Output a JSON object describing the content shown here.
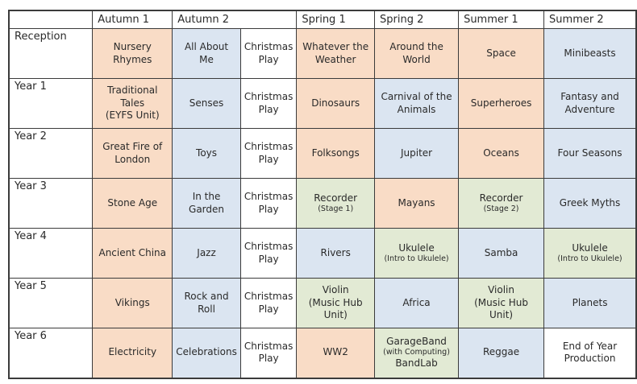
{
  "colors": {
    "peach": "#f9dcc6",
    "blue": "#dbe5f1",
    "green": "#e2ead4",
    "white": "#ffffff",
    "border": "#3b3b3b",
    "text": "#2a2a2a"
  },
  "table": {
    "corner": "",
    "header": [
      {
        "label": "Autumn 1",
        "colspan": 1
      },
      {
        "label": "Autumn 2",
        "colspan": 2
      },
      {
        "label": "Spring 1",
        "colspan": 1
      },
      {
        "label": "Spring 2",
        "colspan": 1
      },
      {
        "label": "Summer 1",
        "colspan": 1
      },
      {
        "label": "Summer 2",
        "colspan": 1
      }
    ],
    "rows": [
      {
        "label": "Reception",
        "cells": [
          {
            "color": "peach",
            "lines": [
              {
                "text": "Nursery Rhymes"
              }
            ]
          },
          {
            "color": "blue",
            "lines": [
              {
                "text": "All About Me"
              }
            ]
          },
          {
            "color": "white",
            "lines": [
              {
                "text": "Christmas Play"
              }
            ]
          },
          {
            "color": "peach",
            "lines": [
              {
                "text": "Whatever the Weather"
              }
            ]
          },
          {
            "color": "peach",
            "lines": [
              {
                "text": "Around the World"
              }
            ]
          },
          {
            "color": "peach",
            "lines": [
              {
                "text": "Space"
              }
            ]
          },
          {
            "color": "blue",
            "lines": [
              {
                "text": "Minibeasts"
              }
            ]
          }
        ]
      },
      {
        "label": "Year 1",
        "cells": [
          {
            "color": "peach",
            "lines": [
              {
                "text": "Traditional Tales"
              },
              {
                "text": "(EYFS Unit)"
              }
            ]
          },
          {
            "color": "blue",
            "lines": [
              {
                "text": "Senses"
              }
            ]
          },
          {
            "color": "white",
            "lines": [
              {
                "text": "Christmas Play"
              }
            ]
          },
          {
            "color": "peach",
            "lines": [
              {
                "text": "Dinosaurs"
              }
            ]
          },
          {
            "color": "blue",
            "lines": [
              {
                "text": "Carnival of the Animals"
              }
            ]
          },
          {
            "color": "peach",
            "lines": [
              {
                "text": "Superheroes"
              }
            ]
          },
          {
            "color": "blue",
            "lines": [
              {
                "text": "Fantasy and Adventure"
              }
            ]
          }
        ]
      },
      {
        "label": "Year 2",
        "cells": [
          {
            "color": "peach",
            "lines": [
              {
                "text": "Great Fire of London"
              }
            ]
          },
          {
            "color": "blue",
            "lines": [
              {
                "text": "Toys"
              }
            ]
          },
          {
            "color": "white",
            "lines": [
              {
                "text": "Christmas Play"
              }
            ]
          },
          {
            "color": "peach",
            "lines": [
              {
                "text": "Folksongs"
              }
            ]
          },
          {
            "color": "blue",
            "lines": [
              {
                "text": "Jupiter"
              }
            ]
          },
          {
            "color": "peach",
            "lines": [
              {
                "text": "Oceans"
              }
            ]
          },
          {
            "color": "blue",
            "lines": [
              {
                "text": "Four Seasons"
              }
            ]
          }
        ]
      },
      {
        "label": "Year 3",
        "cells": [
          {
            "color": "peach",
            "lines": [
              {
                "text": "Stone Age"
              }
            ]
          },
          {
            "color": "blue",
            "lines": [
              {
                "text": "In the Garden"
              }
            ]
          },
          {
            "color": "white",
            "lines": [
              {
                "text": "Christmas Play"
              }
            ]
          },
          {
            "color": "green",
            "lines": [
              {
                "text": "Recorder"
              },
              {
                "text": "(Stage 1)",
                "small": true
              }
            ]
          },
          {
            "color": "peach",
            "lines": [
              {
                "text": "Mayans"
              }
            ]
          },
          {
            "color": "green",
            "lines": [
              {
                "text": "Recorder"
              },
              {
                "text": "(Stage 2)",
                "small": true
              }
            ]
          },
          {
            "color": "blue",
            "lines": [
              {
                "text": "Greek Myths"
              }
            ]
          }
        ]
      },
      {
        "label": "Year 4",
        "cells": [
          {
            "color": "peach",
            "lines": [
              {
                "text": "Ancient China"
              }
            ]
          },
          {
            "color": "blue",
            "lines": [
              {
                "text": "Jazz"
              }
            ]
          },
          {
            "color": "white",
            "lines": [
              {
                "text": "Christmas Play"
              }
            ]
          },
          {
            "color": "blue",
            "lines": [
              {
                "text": "Rivers"
              }
            ]
          },
          {
            "color": "green",
            "lines": [
              {
                "text": "Ukulele"
              },
              {
                "text": "(Intro to Ukulele)",
                "small": true
              }
            ]
          },
          {
            "color": "blue",
            "lines": [
              {
                "text": "Samba"
              }
            ]
          },
          {
            "color": "green",
            "lines": [
              {
                "text": "Ukulele"
              },
              {
                "text": "(Intro to Ukulele)",
                "small": true
              }
            ]
          }
        ]
      },
      {
        "label": "Year 5",
        "cells": [
          {
            "color": "peach",
            "lines": [
              {
                "text": "Vikings"
              }
            ]
          },
          {
            "color": "blue",
            "lines": [
              {
                "text": "Rock and Roll"
              }
            ]
          },
          {
            "color": "white",
            "lines": [
              {
                "text": "Christmas Play"
              }
            ]
          },
          {
            "color": "green",
            "lines": [
              {
                "text": "Violin"
              },
              {
                "text": "(Music Hub Unit)"
              }
            ]
          },
          {
            "color": "blue",
            "lines": [
              {
                "text": "Africa"
              }
            ]
          },
          {
            "color": "green",
            "lines": [
              {
                "text": "Violin"
              },
              {
                "text": "(Music Hub Unit)"
              }
            ]
          },
          {
            "color": "blue",
            "lines": [
              {
                "text": "Planets"
              }
            ]
          }
        ]
      },
      {
        "label": "Year 6",
        "cells": [
          {
            "color": "peach",
            "lines": [
              {
                "text": "Electricity"
              }
            ]
          },
          {
            "color": "blue",
            "lines": [
              {
                "text": "Celebrations"
              }
            ]
          },
          {
            "color": "white",
            "lines": [
              {
                "text": "Christmas Play"
              }
            ]
          },
          {
            "color": "peach",
            "lines": [
              {
                "text": "WW2"
              }
            ]
          },
          {
            "color": "green",
            "lines": [
              {
                "text": "GarageBand"
              },
              {
                "text": "(with Computing)",
                "small": true
              },
              {
                "text": "BandLab"
              }
            ]
          },
          {
            "color": "blue",
            "lines": [
              {
                "text": "Reggae"
              }
            ]
          },
          {
            "color": "white",
            "lines": [
              {
                "text": "End of Year Production"
              }
            ]
          }
        ]
      }
    ]
  }
}
